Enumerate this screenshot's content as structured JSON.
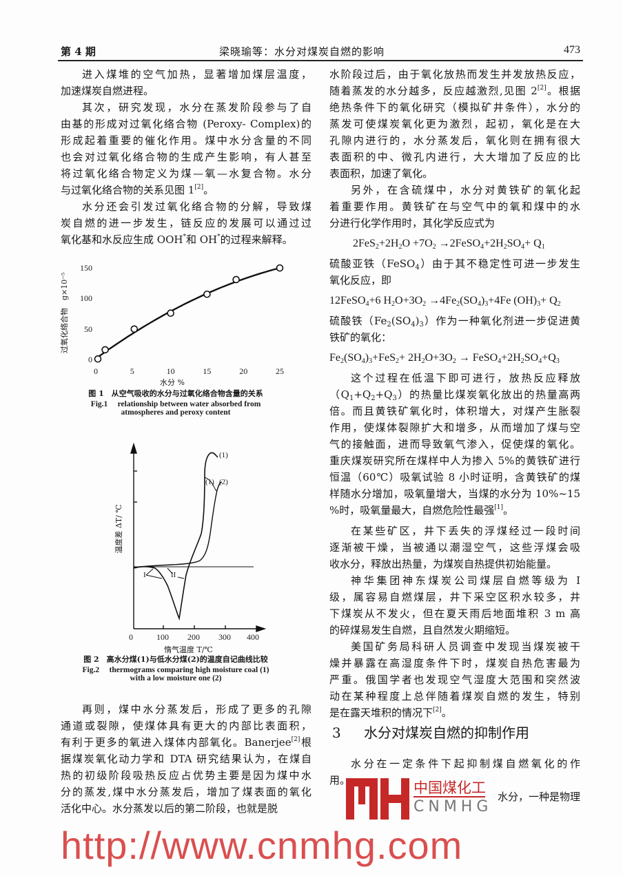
{
  "header": {
    "issue": "第 4 期",
    "title": "梁晓瑜等：水分对煤炭自燃的影响",
    "page": "473"
  },
  "left_top": [
    {
      "type": "para",
      "lines": [
        "进入煤堆的空气加热，显著增加煤层温度，",
        "加速煤炭自燃进程。"
      ]
    },
    {
      "type": "para",
      "lines": [
        "其次，研究发现，水分在蒸发阶段参与了自",
        "由基的形成对过氧化络合物 (Peroxy- Complex)的",
        "形成起着重要的催化作用。煤中水分含量的不同",
        "也会对过氧化络合物的生成产生影响，有人甚至",
        "将过氧化络合物定义为煤—氧—水复合物。水分",
        [
          "与过氧化络合物的关系见图 1",
          {
            "sup": "[2]"
          },
          "。"
        ]
      ]
    },
    {
      "type": "para",
      "lines": [
        "水分还会引发过氧化络合物的分解，导致煤",
        "炭自燃的进一步发生，链反应的发展可以通过过",
        [
          "氧化基和水反应生成 OOH",
          {
            "sup": "*"
          },
          "和 OH",
          {
            "sup": "*"
          },
          "的过程来解释。"
        ]
      ]
    }
  ],
  "figure1": {
    "caption_cn": "图 1　从空气吸收的水分与过氧化络合物含量的关系",
    "caption_en_1": "Fig.1　 relationship between water absorbed from",
    "caption_en_2": "atmospheres and peroxy content"
  },
  "figure2": {
    "caption_cn": "图 2　高水分煤(1)与低水分煤(2)的温度自记曲线比较",
    "caption_en_1": "Fig.2　 thermograms comparing high moisture coal (1)",
    "caption_en_2": "with a low moisture one (2)",
    "xlabel": "惰气温度 T/℃",
    "ylabel": "温度差 ΔT/ ℃",
    "xticks": [
      "0",
      "100",
      "200",
      "300",
      "400"
    ],
    "curve_labels": {
      "c1": "(1)",
      "c12": "(1)",
      "c2": "(2)",
      "stage1": "I",
      "stage2": "II"
    }
  },
  "chart_data": [
    {
      "type": "scatter",
      "title": "",
      "xlabel": "水分 %",
      "ylabel": "过氧化络合物　g×10⁻⁵",
      "xlim": [
        0,
        25
      ],
      "ylim": [
        0,
        150
      ],
      "xticks": [
        0,
        5,
        10,
        15,
        20,
        25
      ],
      "yticks": [
        0,
        50,
        100,
        150
      ],
      "grid": false,
      "points": [
        {
          "x": 0,
          "y": 2
        },
        {
          "x": 1,
          "y": 17
        },
        {
          "x": 5,
          "y": 51
        },
        {
          "x": 10,
          "y": 77
        },
        {
          "x": 15,
          "y": 108
        },
        {
          "x": 19,
          "y": 132
        },
        {
          "x": 25,
          "y": 151
        }
      ],
      "fit_line": true
    }
  ],
  "left_bottom": [
    {
      "type": "para",
      "lines": [
        "再则，煤中水分蒸发后，形成了更多的孔隙",
        "通道或裂隙，使煤体具有更大的内部比表面积，",
        [
          "有利于更多的氧进入煤体内部氧化。Banerjee",
          {
            "sup": "[2]"
          },
          "根"
        ],
        "据煤炭氧化动力学和 DTA 研究结果认为，在煤自",
        "热的初级阶段吸热反应占优势主要是因为煤中水",
        "分的蒸发,煤中水分蒸发后，增加了煤表面的氧化",
        "活化中心。水分蒸发以后的第二阶段，也就是脱"
      ],
      "open": true
    }
  ],
  "right": [
    {
      "type": "cont",
      "lines": [
        "水阶段过后，由于氧化放热而发生并发放热反应，",
        [
          "随着蒸发的水分越多，反应越激烈,见图 2",
          {
            "sup": "[2]"
          },
          "。根据"
        ],
        "绝热条件下的氧化研究（模拟矿井条件），水分的",
        "蒸发可使煤炭氧化更为激烈，起初，氧化是在大",
        "孔隙内进行的，水分蒸发后，氧化则在拥有很大",
        "表面积的中、微孔内进行，大大增加了反应的比",
        "表面积，加速了氧化。"
      ]
    },
    {
      "type": "para",
      "lines": [
        "另外，在含硫煤中，水分对黄铁矿的氧化起",
        "着重要作用。黄铁矿在与空气中的氧和煤中的水",
        "分进行化学作用时，其化学反应式为"
      ]
    },
    {
      "type": "eq",
      "indent": true,
      "lines": [
        [
          "2FeS",
          {
            "sub": "2"
          },
          "+2H",
          {
            "sub": "2"
          },
          "O +7O",
          {
            "sub": "2"
          },
          " →2FeSO",
          {
            "sub": "4"
          },
          "+2H",
          {
            "sub": "2"
          },
          "SO",
          {
            "sub": "4"
          },
          "+ Q",
          {
            "sub": "1"
          }
        ]
      ]
    },
    {
      "type": "cont",
      "lines": [
        [
          "硫酸亚铁（FeSO",
          {
            "sub": "4"
          },
          "）由于其不稳定性可进一步发生"
        ],
        "氧化反应，即"
      ]
    },
    {
      "type": "eq",
      "lines": [
        [
          "12FeSO",
          {
            "sub": "4"
          },
          "+6 H",
          {
            "sub": "2"
          },
          "O+3O",
          {
            "sub": "2"
          },
          " →4Fe",
          {
            "sub": "2"
          },
          "(SO",
          {
            "sub": "4"
          },
          ")",
          {
            "sub": "3"
          },
          "+4Fe (OH)",
          {
            "sub": "3"
          },
          "+ Q",
          {
            "sub": "2"
          }
        ]
      ]
    },
    {
      "type": "cont",
      "lines": [
        [
          "硫酸铁（Fe",
          {
            "sub": "2"
          },
          "(SO",
          {
            "sub": "4"
          },
          ")",
          {
            "sub": "3"
          },
          "）作为一种氧化剂进一步促进黄"
        ],
        "铁矿的氧化："
      ]
    },
    {
      "type": "eq",
      "lines": [
        [
          "Fe",
          {
            "sub": "2"
          },
          "(SO",
          {
            "sub": "4"
          },
          ")",
          {
            "sub": "3"
          },
          "+FeS",
          {
            "sub": "2"
          },
          "+ 2H",
          {
            "sub": "2"
          },
          "O+3O",
          {
            "sub": "2"
          },
          " →  FeSO",
          {
            "sub": "4"
          },
          "+2H",
          {
            "sub": "2"
          },
          "SO",
          {
            "sub": "4"
          },
          "+Q",
          {
            "sub": "3"
          }
        ]
      ]
    },
    {
      "type": "para",
      "lines": [
        "这个过程在低温下即可进行，放热反应释放",
        [
          "（Q",
          {
            "sub": "1"
          },
          "+Q",
          {
            "sub": "2"
          },
          "+Q",
          {
            "sub": "3"
          },
          "）的热量比煤炭氧化放出的热量高两"
        ],
        "倍。而且黄铁矿氧化时，体积增大，对煤产生胀裂",
        "作用，使煤体裂隙扩大和增多，从而增加了煤与空",
        "气的接触面，进而导致氧气渗入，促使煤的氧化。",
        "重庆煤炭研究所在煤样中人为掺入 5%的黄铁矿进行",
        "恒温（60℃）吸氧试验 8 小时证明，含黄铁矿的煤",
        "样随水分增加，吸氧量增大，当煤的水分为 10%~15",
        [
          "%时，吸氧量最大，自燃危险性最强",
          {
            "sup": "[1]"
          },
          "。"
        ]
      ]
    },
    {
      "type": "para",
      "gap": true,
      "lines": [
        "在某些矿区，井下丢失的浮煤经过一段时间",
        "逐渐被干燥，当被通以潮湿空气，这些浮煤会吸",
        "收水分，释放出热量，为煤炭自热提供初始能量。"
      ]
    },
    {
      "type": "para",
      "lines": [
        "神华集团神东煤炭公司煤层自燃等级为 I",
        "级，属容易自燃煤层，井下采空区积水较多，井",
        "下煤炭从不发火，但在夏天雨后地面堆积 3 m 高",
        "的碎煤易发生自燃，且自然发火期缩短。"
      ]
    },
    {
      "type": "para",
      "lines": [
        "美国矿务局科研人员调查中发现当煤炭被干",
        "燥并暴露在高湿度条件下时，煤炭自热危害最为",
        "严重。俄国学者也发现空气湿度大范围和突然波",
        "动在某种程度上总伴随着煤炭自燃的发生，特别",
        [
          "是在露天堆积的情况下",
          {
            "sup": "[2]"
          },
          "。"
        ]
      ]
    },
    {
      "type": "heading",
      "number": "3",
      "text": "水分对煤炭自燃的抑制作用"
    },
    {
      "type": "para",
      "lines": [
        "水分在一定条件下起抑制煤自燃氧化的作",
        "用。"
      ],
      "open": true
    },
    {
      "type": "tail",
      "lines": [
        "水分，一种是物理"
      ]
    }
  ],
  "watermark": "http://www.cnmhg.com",
  "logo": {
    "cn": "中国煤化工",
    "en": "CNMHG",
    "color": "#c62828"
  }
}
